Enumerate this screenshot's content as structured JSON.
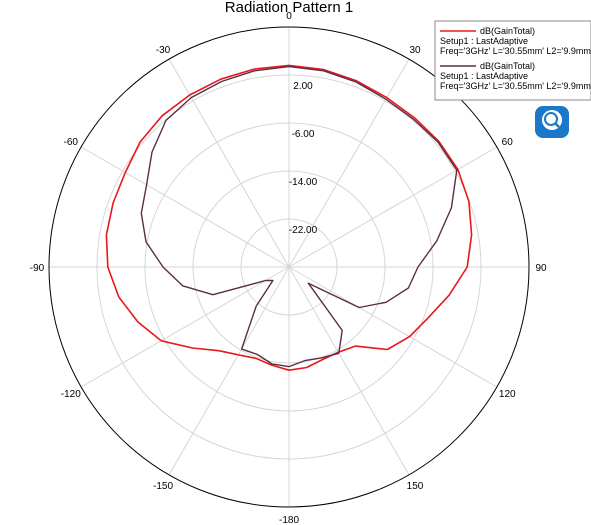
{
  "chart_data": {
    "type": "polar-line",
    "title": "Radiation Pattern 1",
    "angle_ticks": [
      "0",
      "30",
      "60",
      "90",
      "120",
      "150",
      "-180",
      "-150",
      "-120",
      "-90",
      "-60",
      "-30"
    ],
    "angle_tick_values": [
      0,
      30,
      60,
      90,
      120,
      150,
      180,
      -150,
      -120,
      -90,
      -60,
      -30
    ],
    "radial_ticks": [
      "2.00",
      "-6.00",
      "-14.00",
      "-22.00"
    ],
    "radial_tick_values": [
      2,
      -6,
      -14,
      -22
    ],
    "r_range": [
      -30,
      10
    ],
    "grid": true,
    "legend_position": "top-right",
    "series": [
      {
        "legend_lines": [
          "dB(GainTotal)",
          "Setup1 : LastAdaptive",
          "Freq='3GHz' L='30.55mm' L2='9.9mm'"
        ],
        "color": "#e8181c",
        "angles": [
          0,
          10,
          20,
          30,
          40,
          50,
          60,
          70,
          80,
          90,
          100,
          110,
          120,
          130,
          140,
          150,
          160,
          170,
          180,
          -170,
          -160,
          -150,
          -140,
          -130,
          -120,
          -110,
          -100,
          -90,
          -80,
          -70,
          -60,
          -50,
          -40,
          -30,
          -20,
          -10
        ],
        "values": [
          3.6,
          3.4,
          3.0,
          2.6,
          2.5,
          2.6,
          2.5,
          1.9,
          0.9,
          -0.3,
          -2.9,
          -5.3,
          -6.8,
          -8.6,
          -12.8,
          -13.6,
          -13.6,
          -13.0,
          -12.8,
          -13.4,
          -13.8,
          -13.1,
          -11.8,
          -9.0,
          -5.4,
          -3.2,
          -1.2,
          0.2,
          0.9,
          1.2,
          1.5,
          2.4,
          2.9,
          3.1,
          3.3,
          3.5
        ]
      },
      {
        "legend_lines": [
          "dB(GainTotal)",
          "Setup1 : LastAdaptive",
          "Freq='3GHz' L='30.55mm' L2='9.9mm'"
        ],
        "color": "#5a2e45",
        "angles": [
          0,
          10,
          20,
          30,
          40,
          50,
          60,
          70,
          80,
          90,
          100,
          110,
          120,
          130,
          140,
          150,
          160,
          170,
          180,
          -170,
          -160,
          -150,
          -140,
          -130,
          -120,
          -110,
          -100,
          -90,
          -80,
          -70,
          -60,
          -50,
          -40,
          -30,
          -20,
          -10
        ],
        "values": [
          3.4,
          3.2,
          2.8,
          2.3,
          2.2,
          2.4,
          2.3,
          -1.2,
          -5.0,
          -8.5,
          -9.8,
          -12.8,
          -16.5,
          -25.8,
          -16.2,
          -13.4,
          -13.9,
          -14.2,
          -13.4,
          -13.6,
          -14.5,
          -14.2,
          -21.5,
          -26.5,
          -25.5,
          -16.5,
          -12.0,
          -9.0,
          -5.8,
          -3.8,
          -2.6,
          -0.2,
          1.9,
          2.6,
          2.9,
          3.2
        ]
      }
    ]
  },
  "floating_icon": "zoom-magnifier-icon"
}
